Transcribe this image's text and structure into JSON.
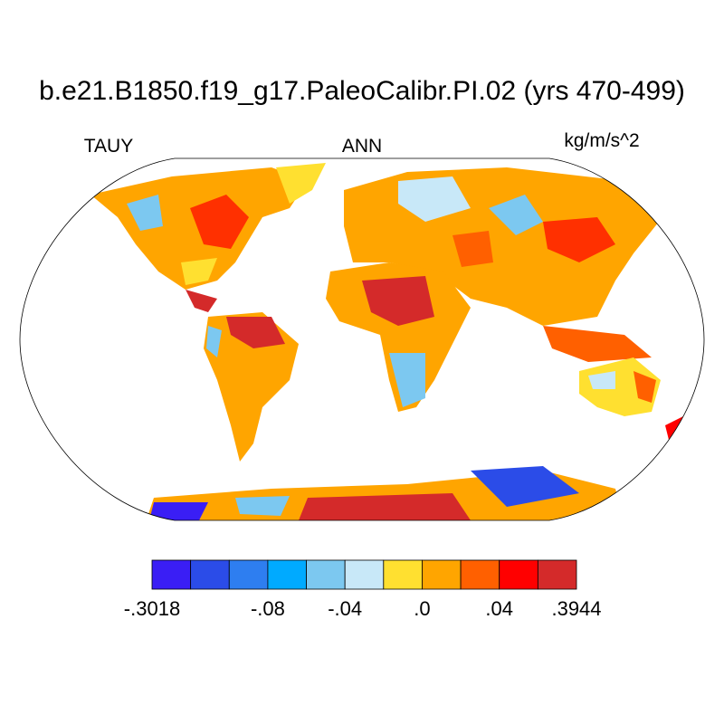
{
  "title": "b.e21.B1850.f19_g17.PaleoCalibr.PI.02 (yrs 470-499)",
  "left_label": "TAUY",
  "center_label": "ANN",
  "right_label": "kg/m/s^2",
  "colorbar": {
    "colors": [
      "#3a1ef5",
      "#2b4ce8",
      "#2e7ef0",
      "#00aaff",
      "#7cc8f0",
      "#c8e8f8",
      "#ffe030",
      "#ffa500",
      "#ff6000",
      "#ff0000",
      "#d42a2a"
    ],
    "labels": [
      "-.3018",
      "-.08",
      "-.04",
      ".0",
      ".04",
      ".3944"
    ]
  }
}
